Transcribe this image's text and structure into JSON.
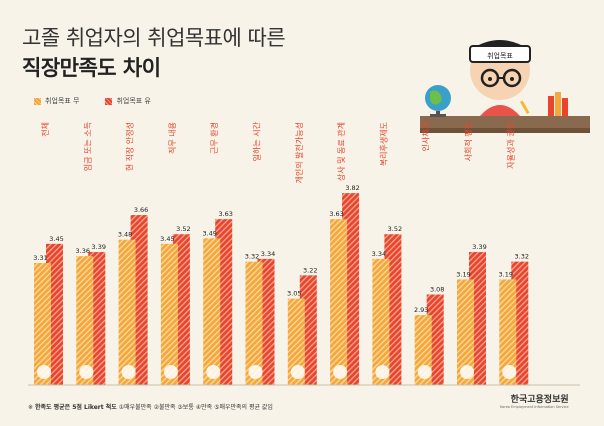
{
  "title_line1": "고졸 취업자의 취업목표에 따른",
  "title_line2": "직장만족도 차이",
  "legend": {
    "no": "취업목표 무",
    "yes": "취업목표 유"
  },
  "illustration": {
    "hat_text": "취업목표"
  },
  "footnote": {
    "bold": "한족도 평균은 5점 Likert 척도",
    "rest": "①매우불만족 ②불만족 ③보통 ④만족 ⑤매우만족의 평균 값임"
  },
  "org": {
    "name": "한국고용정보원",
    "sub": "Korea Employment Information Service"
  },
  "colors": {
    "no": "#f4a73a",
    "yes": "#e8452c"
  },
  "chart_data": {
    "type": "bar",
    "categories": [
      "전체",
      "임금 또는 소득",
      "현 직장 안정성",
      "직무 내용",
      "근무 환경",
      "일하는 시간",
      "개인의 발전가능성",
      "상사 및 동료 관계",
      "복리후생제도",
      "인사체계",
      "사회적 평판",
      "자율성과 권한"
    ],
    "series": [
      {
        "name": "취업목표 무",
        "values": [
          3.31,
          3.36,
          3.48,
          3.45,
          3.49,
          3.32,
          3.05,
          3.63,
          3.34,
          2.93,
          3.19,
          3.19
        ]
      },
      {
        "name": "취업목표 유",
        "values": [
          3.45,
          3.39,
          3.66,
          3.52,
          3.63,
          3.34,
          3.22,
          3.82,
          3.52,
          3.08,
          3.39,
          3.32
        ]
      }
    ],
    "value_labels_no": [
      "3.31",
      "3.36",
      "3.48",
      "3.45",
      "3.49",
      "3.32",
      "3.05",
      "3.63",
      "3.34",
      "2.93",
      "3.19",
      "3.19"
    ],
    "value_labels_yes": [
      "3.45",
      "3.39",
      "3.66",
      "3.52",
      "3.63",
      "3.34",
      "3.22",
      "3.82",
      "3.52",
      "3.08",
      "3.39",
      "3.32"
    ]
  }
}
